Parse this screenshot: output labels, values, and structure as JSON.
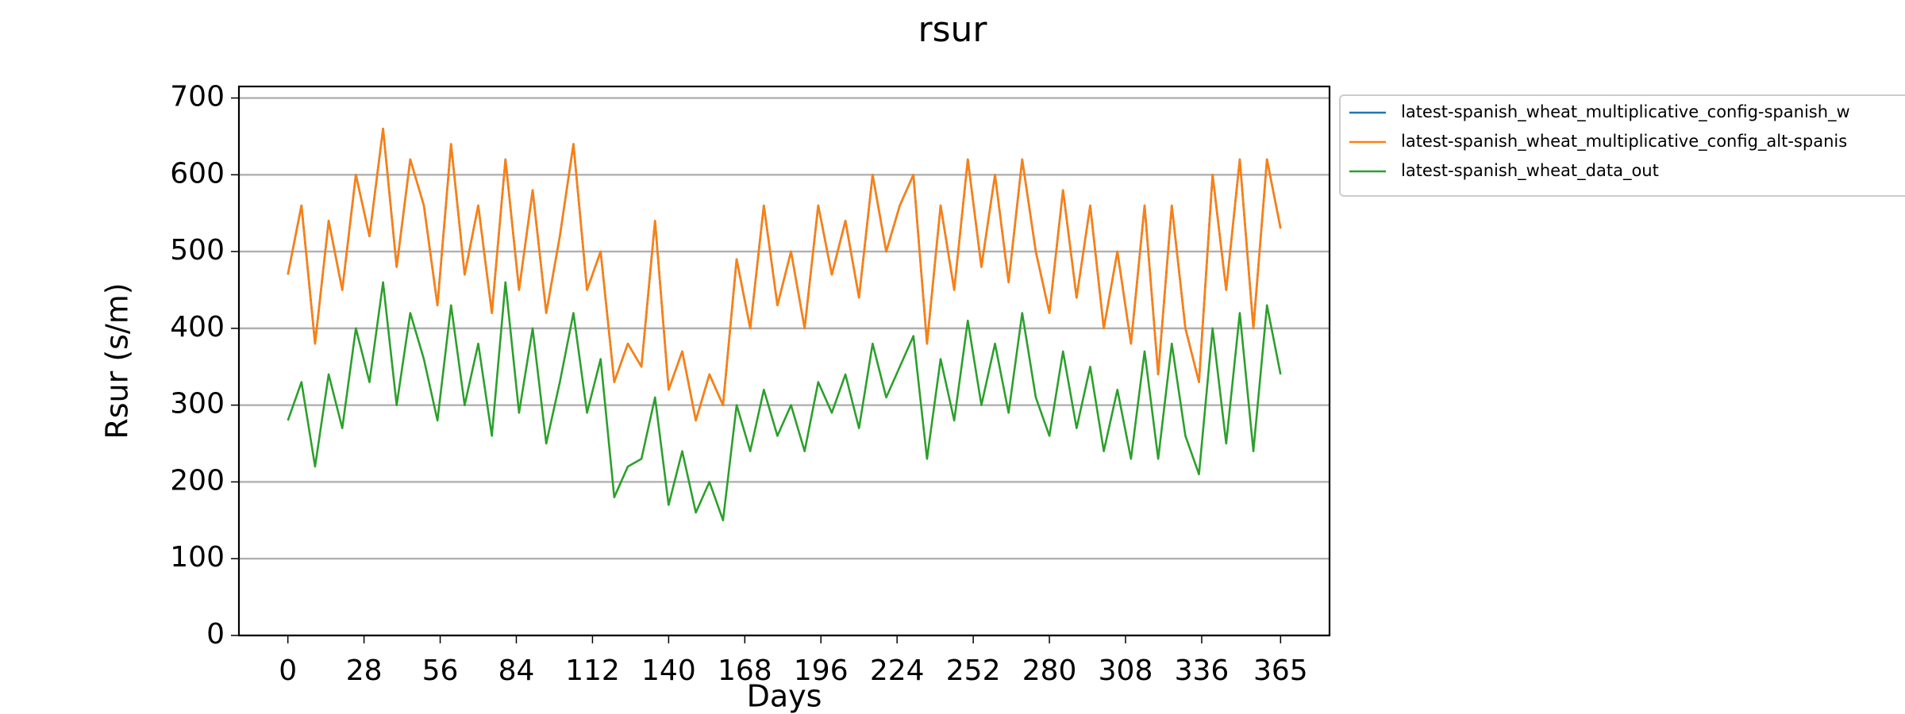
{
  "chart_data": {
    "type": "line",
    "title": "rsur",
    "xlabel": "Days",
    "ylabel": "Rsur (s/m)",
    "x": [
      0,
      5,
      10,
      15,
      20,
      25,
      30,
      35,
      40,
      45,
      50,
      55,
      60,
      65,
      70,
      75,
      80,
      85,
      90,
      95,
      100,
      105,
      110,
      115,
      120,
      125,
      130,
      135,
      140,
      145,
      150,
      155,
      160,
      165,
      170,
      175,
      180,
      185,
      190,
      195,
      200,
      205,
      210,
      215,
      220,
      225,
      230,
      235,
      240,
      245,
      250,
      255,
      260,
      265,
      270,
      275,
      280,
      285,
      290,
      295,
      300,
      305,
      310,
      315,
      320,
      325,
      330,
      335,
      340,
      345,
      350,
      355,
      360,
      365
    ],
    "series": [
      {
        "name": "latest-spanish_wheat_multiplicative_config-spanish_w",
        "color": "#1f77b4",
        "values": [
          470,
          560,
          380,
          540,
          450,
          600,
          520,
          660,
          480,
          620,
          560,
          430,
          640,
          470,
          560,
          420,
          620,
          450,
          580,
          420,
          520,
          640,
          450,
          500,
          330,
          380,
          350,
          540,
          320,
          370,
          280,
          340,
          300,
          490,
          400,
          560,
          430,
          500,
          400,
          560,
          470,
          540,
          440,
          600,
          500,
          560,
          600,
          380,
          560,
          450,
          620,
          480,
          600,
          460,
          620,
          500,
          420,
          580,
          440,
          560,
          400,
          500,
          380,
          560,
          340,
          560,
          400,
          330,
          600,
          450,
          620,
          400,
          620,
          530
        ]
      },
      {
        "name": "latest-spanish_wheat_multiplicative_config_alt-spanis",
        "color": "#ff7f0e",
        "values": [
          470,
          560,
          380,
          540,
          450,
          600,
          520,
          660,
          480,
          620,
          560,
          430,
          640,
          470,
          560,
          420,
          620,
          450,
          580,
          420,
          520,
          640,
          450,
          500,
          330,
          380,
          350,
          540,
          320,
          370,
          280,
          340,
          300,
          490,
          400,
          560,
          430,
          500,
          400,
          560,
          470,
          540,
          440,
          600,
          500,
          560,
          600,
          380,
          560,
          450,
          620,
          480,
          600,
          460,
          620,
          500,
          420,
          580,
          440,
          560,
          400,
          500,
          380,
          560,
          340,
          560,
          400,
          330,
          600,
          450,
          620,
          400,
          620,
          530
        ]
      },
      {
        "name": "latest-spanish_wheat_data_out",
        "color": "#2ca02c",
        "values": [
          280,
          330,
          220,
          340,
          270,
          400,
          330,
          460,
          300,
          420,
          360,
          280,
          430,
          300,
          380,
          260,
          460,
          290,
          400,
          250,
          330,
          420,
          290,
          360,
          180,
          220,
          230,
          310,
          170,
          240,
          160,
          200,
          150,
          300,
          240,
          320,
          260,
          300,
          240,
          330,
          290,
          340,
          270,
          380,
          310,
          350,
          390,
          230,
          360,
          280,
          410,
          300,
          380,
          290,
          420,
          310,
          260,
          370,
          270,
          350,
          240,
          320,
          230,
          370,
          230,
          380,
          260,
          210,
          400,
          250,
          420,
          240,
          430,
          340
        ]
      }
    ],
    "xlim": [
      -18,
      383
    ],
    "xticks": [
      0,
      28,
      56,
      84,
      112,
      140,
      168,
      196,
      224,
      252,
      280,
      308,
      336,
      365
    ],
    "ylim": [
      0,
      715
    ],
    "yticks": [
      0,
      100,
      200,
      300,
      400,
      500,
      600,
      700
    ],
    "grid": "y",
    "legend": "outside-upper-right"
  }
}
